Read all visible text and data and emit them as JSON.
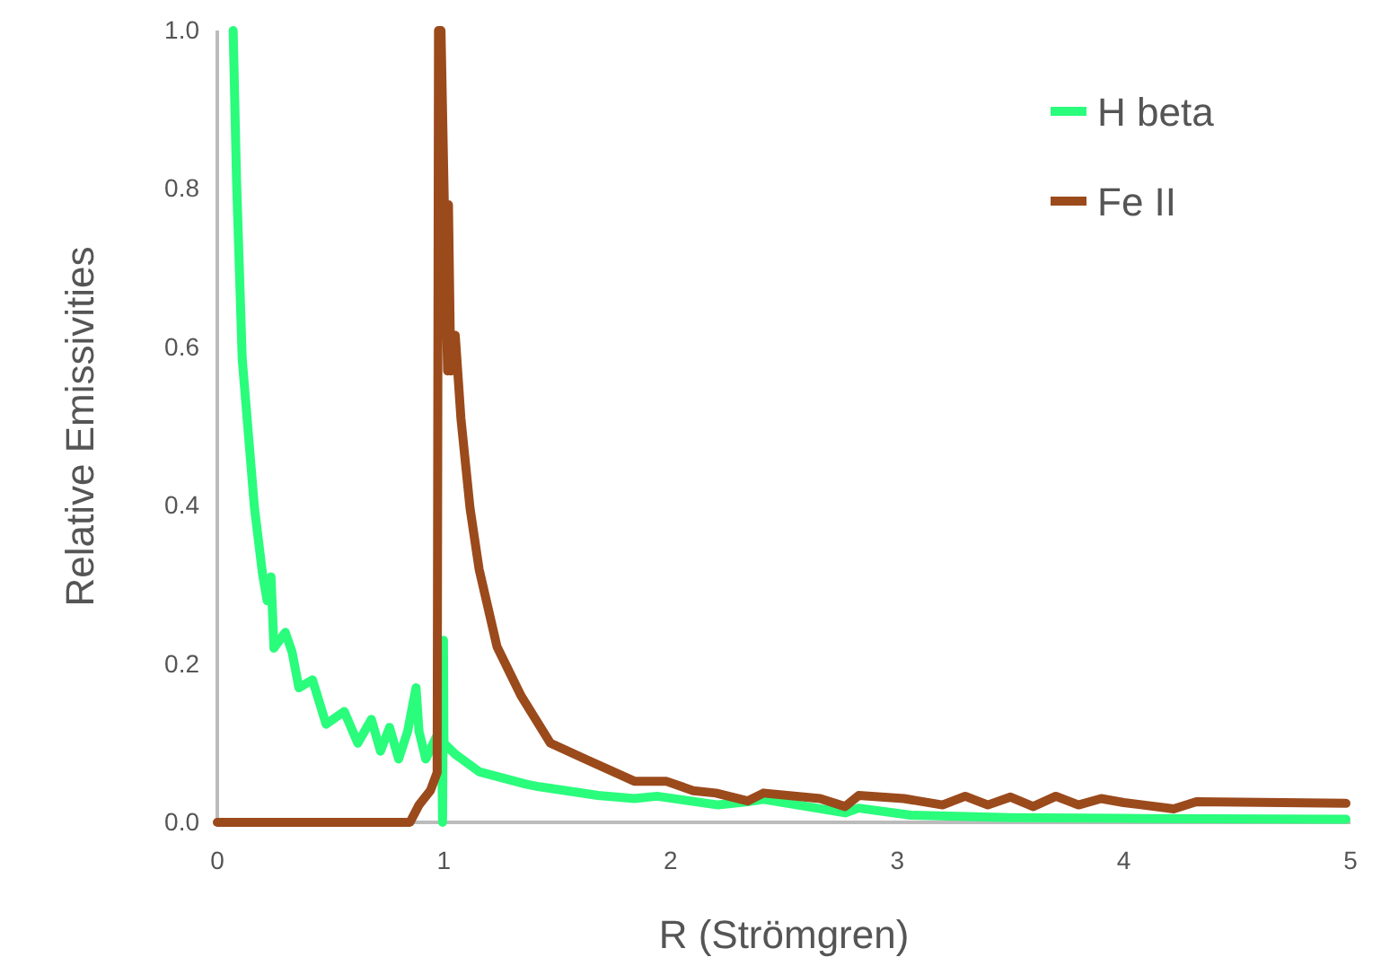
{
  "chart_data": {
    "type": "line",
    "xlabel": "R (Strömgren)",
    "ylabel": "Relative Emissivities",
    "xlim": [
      0,
      5
    ],
    "xticks": [
      0,
      1,
      2,
      3,
      4,
      5
    ],
    "ylim": [
      0,
      1
    ],
    "yticks": [
      {
        "value": 0,
        "label": "0.0"
      },
      {
        "value": 0.2,
        "label": "0.2"
      },
      {
        "value": 0.4,
        "label": "0.4"
      },
      {
        "value": 0.6,
        "label": "0.6"
      },
      {
        "value": 0.8,
        "label": "0.8"
      },
      {
        "value": 1,
        "label": "1.0"
      }
    ],
    "grid": false,
    "legend": "top right",
    "marker": "none",
    "line_style": "solid",
    "series": [
      {
        "name": "H beta",
        "color": "#2afc7c",
        "x": [
          0.07,
          0.085,
          0.11,
          0.164,
          0.2,
          0.22,
          0.237,
          0.25,
          0.3,
          0.33,
          0.36,
          0.42,
          0.48,
          0.56,
          0.62,
          0.68,
          0.72,
          0.76,
          0.8,
          0.84,
          0.877,
          0.89,
          0.92,
          0.97,
          0.99,
          0.994,
          0.998,
          1.0,
          1.05,
          1.155,
          1.365,
          1.42,
          1.68,
          1.84,
          1.94,
          2.21,
          2.34,
          2.41,
          2.77,
          2.83,
          3.06,
          3.5,
          4.0,
          4.98
        ],
        "values": [
          1.0,
          0.81,
          0.585,
          0.397,
          0.313,
          0.28,
          0.31,
          0.22,
          0.24,
          0.215,
          0.17,
          0.18,
          0.124,
          0.14,
          0.1,
          0.13,
          0.09,
          0.12,
          0.08,
          0.115,
          0.17,
          0.115,
          0.08,
          0.11,
          0.1,
          0.0,
          0.23,
          0.1,
          0.086,
          0.064,
          0.048,
          0.045,
          0.034,
          0.03,
          0.033,
          0.022,
          0.026,
          0.029,
          0.012,
          0.018,
          0.009,
          0.006,
          0.005,
          0.004
        ]
      },
      {
        "name": "Fe II",
        "color": "#9b4a1c",
        "x": [
          0,
          0.85,
          0.89,
          0.94,
          0.97,
          0.976,
          0.987,
          1.016,
          1.02,
          1.03,
          1.05,
          1.075,
          1.115,
          1.155,
          1.234,
          1.34,
          1.47,
          1.63,
          1.84,
          1.98,
          2.1,
          2.2,
          2.34,
          2.41,
          2.66,
          2.77,
          2.83,
          3.03,
          3.2,
          3.3,
          3.4,
          3.5,
          3.6,
          3.7,
          3.8,
          3.9,
          4.0,
          4.22,
          4.32,
          4.98
        ],
        "values": [
          0,
          0,
          0.022,
          0.04,
          0.063,
          1.0,
          1.0,
          0.57,
          0.78,
          0.57,
          0.615,
          0.51,
          0.397,
          0.32,
          0.222,
          0.16,
          0.1,
          0.079,
          0.052,
          0.052,
          0.04,
          0.037,
          0.027,
          0.037,
          0.03,
          0.02,
          0.034,
          0.03,
          0.022,
          0.033,
          0.022,
          0.032,
          0.02,
          0.033,
          0.022,
          0.03,
          0.025,
          0.017,
          0.026,
          0.024
        ]
      }
    ]
  }
}
